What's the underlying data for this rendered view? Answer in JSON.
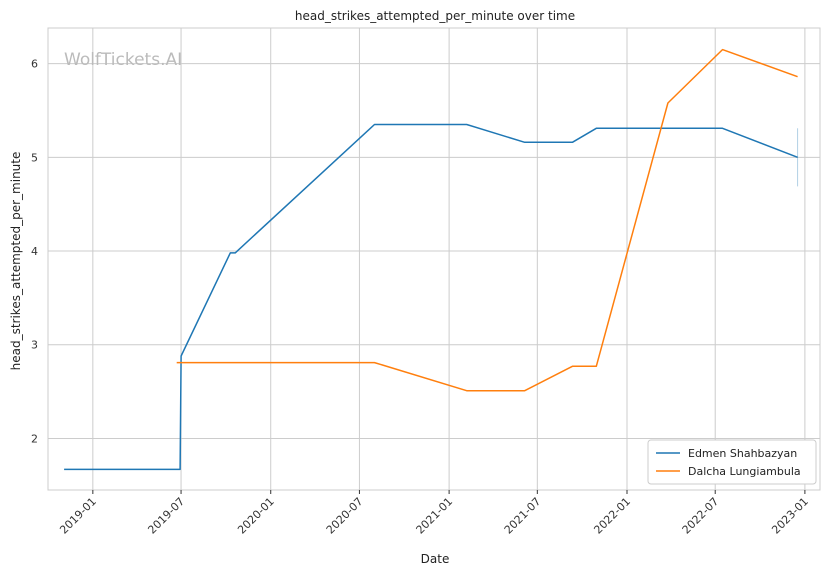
{
  "watermark": "WolfTickets.AI",
  "chart_data": {
    "type": "line",
    "title": "head_strikes_attempted_per_minute over time",
    "xlabel": "Date",
    "ylabel": "head_strikes_attempted_per_minute",
    "xlim": [
      "2018-10-01",
      "2023-02-01"
    ],
    "ylim": [
      1.45,
      6.38
    ],
    "x_ticks": [
      "2019-01",
      "2019-07",
      "2020-01",
      "2020-07",
      "2021-01",
      "2021-07",
      "2022-01",
      "2022-07",
      "2023-01"
    ],
    "y_ticks": [
      2,
      3,
      4,
      5,
      6
    ],
    "grid": true,
    "legend_position": "lower-right",
    "series": [
      {
        "name": "Edmen Shahbazyan",
        "color": "#1f77b4",
        "points": [
          [
            "2018-11-03",
            1.67
          ],
          [
            "2019-06-29",
            1.67
          ],
          [
            "2019-07-01",
            2.88
          ],
          [
            "2019-10-10",
            3.98
          ],
          [
            "2019-10-20",
            3.98
          ],
          [
            "2020-08-01",
            5.35
          ],
          [
            "2021-02-06",
            5.35
          ],
          [
            "2021-06-05",
            5.16
          ],
          [
            "2021-09-11",
            5.16
          ],
          [
            "2021-10-30",
            5.31
          ],
          [
            "2022-07-16",
            5.31
          ],
          [
            "2022-12-17",
            5.0
          ]
        ],
        "error_bar": {
          "x": "2022-12-17",
          "low": 4.69,
          "high": 5.31
        }
      },
      {
        "name": "Dalcha Lungiambula",
        "color": "#ff7f0e",
        "points": [
          [
            "2019-06-22",
            2.81
          ],
          [
            "2020-08-01",
            2.81
          ],
          [
            "2021-02-06",
            2.51
          ],
          [
            "2021-06-05",
            2.51
          ],
          [
            "2021-09-11",
            2.77
          ],
          [
            "2021-10-30",
            2.77
          ],
          [
            "2022-03-26",
            5.58
          ],
          [
            "2022-07-16",
            6.15
          ],
          [
            "2022-12-17",
            5.86
          ]
        ]
      }
    ]
  }
}
